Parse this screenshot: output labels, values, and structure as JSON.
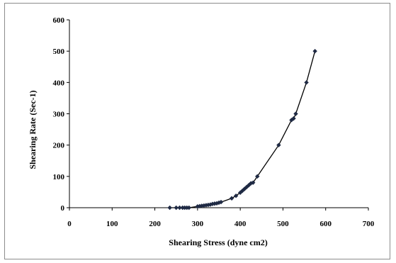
{
  "chart_data": {
    "type": "scatter",
    "title": "",
    "xlabel": "Shearing Stress (dyne cm2)",
    "ylabel": "Shearing Rate (Sec-1)",
    "xlim": [
      0,
      700
    ],
    "ylim": [
      0,
      600
    ],
    "x_ticks": [
      "0",
      "100",
      "200",
      "300",
      "400",
      "500",
      "600",
      "700"
    ],
    "y_ticks": [
      "0",
      "100",
      "200",
      "300",
      "400",
      "500",
      "600"
    ],
    "grid": false,
    "legend": "none",
    "marker": "diamond",
    "connected_with_smooth_line": true,
    "color": "#1f2a44",
    "series": [
      {
        "x": [
          235,
          250,
          258,
          265,
          270,
          275,
          280,
          300,
          305,
          310,
          315,
          320,
          325,
          330,
          335,
          340,
          345,
          350,
          355,
          380,
          390,
          400,
          405,
          410,
          415,
          420,
          425,
          430,
          440,
          490,
          520,
          525,
          530,
          555,
          575
        ],
        "y": [
          0,
          0,
          0,
          0,
          0,
          0,
          0,
          4,
          5,
          6,
          7,
          8,
          9,
          10,
          12,
          13,
          14,
          16,
          18,
          30,
          38,
          48,
          54,
          60,
          66,
          72,
          78,
          80,
          100,
          200,
          280,
          285,
          300,
          400,
          500
        ]
      }
    ]
  }
}
